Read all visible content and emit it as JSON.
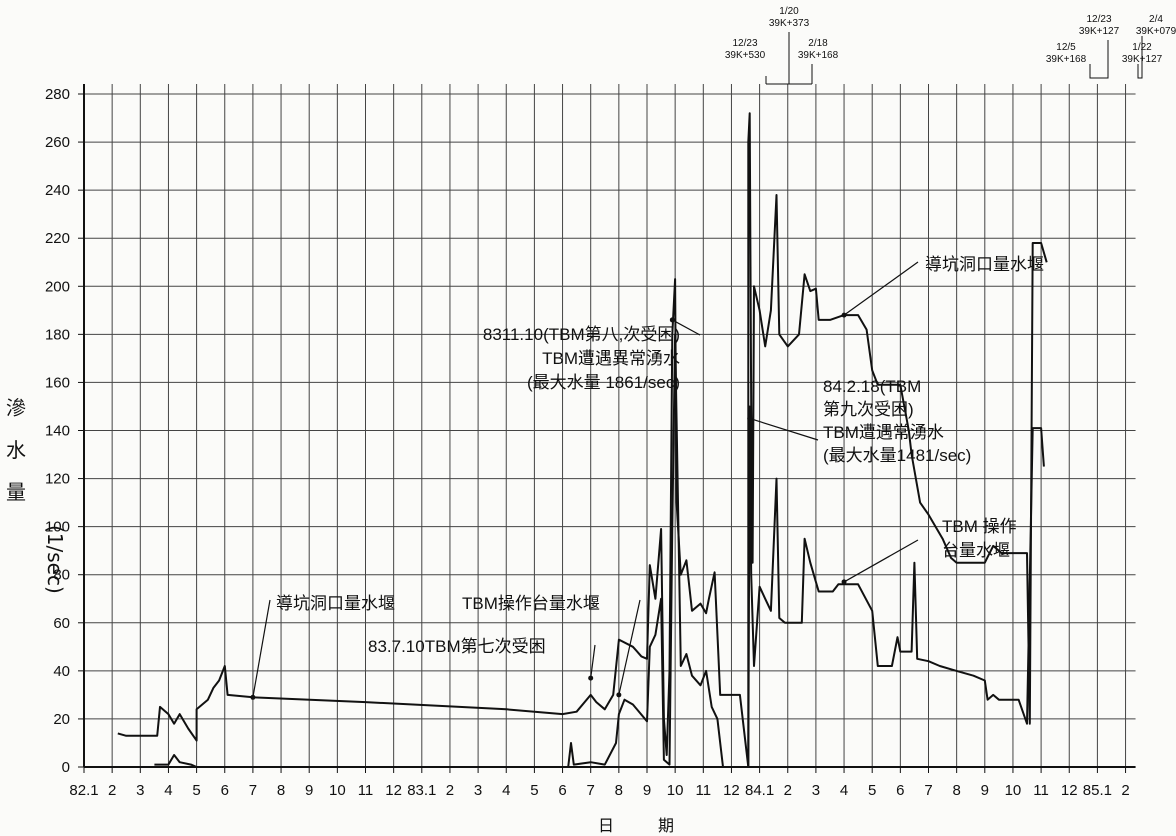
{
  "page": {
    "ylabel_chars": [
      "滲",
      "水",
      "量"
    ],
    "ylabel_unit": "(1/sec)",
    "xlabel_chars": [
      "日",
      "期"
    ]
  },
  "chart_data": {
    "type": "line",
    "title": "",
    "xlabel": "日 期",
    "ylabel": "滲水量 (1/sec)",
    "ylim": [
      0,
      280
    ],
    "yticks": [
      0,
      20,
      40,
      60,
      80,
      100,
      120,
      140,
      160,
      180,
      200,
      220,
      240,
      260,
      280
    ],
    "xticks": [
      "82.1",
      "2",
      "3",
      "4",
      "5",
      "6",
      "7",
      "8",
      "9",
      "10",
      "11",
      "12",
      "83.1",
      "2",
      "3",
      "4",
      "5",
      "6",
      "7",
      "8",
      "9",
      "10",
      "11",
      "12",
      "84.1",
      "2",
      "3",
      "4",
      "5",
      "6",
      "7",
      "8",
      "9",
      "10",
      "11",
      "12",
      "85.1",
      "2"
    ],
    "grid": true,
    "series": [
      {
        "name": "導坑洞口量水堰",
        "points": [
          [
            1.2,
            14
          ],
          [
            1.5,
            13
          ],
          [
            2.0,
            13
          ],
          [
            2.6,
            13
          ],
          [
            2.7,
            25
          ],
          [
            3.0,
            22
          ],
          [
            3.2,
            18
          ],
          [
            3.4,
            22
          ],
          [
            3.7,
            16
          ],
          [
            4.0,
            11
          ],
          [
            4.0,
            24
          ],
          [
            4.4,
            28
          ],
          [
            4.6,
            33
          ],
          [
            4.8,
            36
          ],
          [
            5.0,
            42
          ],
          [
            5.1,
            30
          ],
          [
            6.0,
            29
          ],
          [
            10.0,
            27
          ],
          [
            15.0,
            24
          ],
          [
            17.0,
            22
          ],
          [
            17.5,
            23
          ],
          [
            18.0,
            30
          ],
          [
            18.2,
            27
          ],
          [
            18.5,
            24
          ],
          [
            18.8,
            30
          ],
          [
            19.0,
            53
          ],
          [
            19.5,
            50
          ],
          [
            19.8,
            46
          ],
          [
            20.0,
            45
          ],
          [
            20.1,
            84
          ],
          [
            20.3,
            70
          ],
          [
            20.5,
            99
          ],
          [
            20.6,
            20
          ],
          [
            20.7,
            5
          ],
          [
            20.8,
            40
          ],
          [
            20.9,
            180
          ],
          [
            21.0,
            203
          ],
          [
            21.05,
            110
          ],
          [
            21.2,
            80
          ],
          [
            21.4,
            86
          ],
          [
            21.6,
            65
          ],
          [
            21.9,
            68
          ],
          [
            22.1,
            64
          ],
          [
            22.2,
            70
          ],
          [
            22.4,
            81
          ],
          [
            22.6,
            30
          ],
          [
            23.3,
            30
          ],
          [
            23.6,
            0
          ],
          [
            23.6,
            260
          ],
          [
            23.65,
            272
          ],
          [
            23.7,
            150
          ],
          [
            23.75,
            85
          ],
          [
            23.8,
            200
          ],
          [
            24.0,
            190
          ],
          [
            24.2,
            175
          ],
          [
            24.4,
            190
          ],
          [
            24.6,
            238
          ],
          [
            24.7,
            180
          ],
          [
            25.0,
            175
          ],
          [
            25.4,
            180
          ],
          [
            25.6,
            205
          ],
          [
            25.8,
            198
          ],
          [
            26.0,
            199
          ],
          [
            26.1,
            186
          ],
          [
            26.5,
            186
          ],
          [
            27.0,
            188
          ],
          [
            27.5,
            188
          ],
          [
            27.8,
            182
          ],
          [
            28.0,
            165
          ],
          [
            28.2,
            159
          ],
          [
            29.0,
            159
          ],
          [
            29.3,
            140
          ],
          [
            29.4,
            130
          ],
          [
            29.7,
            110
          ],
          [
            30.0,
            105
          ],
          [
            30.5,
            95
          ],
          [
            30.8,
            87
          ],
          [
            31.0,
            85
          ],
          [
            32.0,
            85
          ],
          [
            32.3,
            92
          ],
          [
            32.6,
            89
          ],
          [
            33.5,
            89
          ],
          [
            33.6,
            18
          ],
          [
            33.7,
            218
          ],
          [
            34.0,
            218
          ],
          [
            34.2,
            210
          ]
        ]
      },
      {
        "name": "TBM操作台量水堰",
        "points": [
          [
            2.5,
            1
          ],
          [
            3.0,
            1
          ],
          [
            3.2,
            5
          ],
          [
            3.4,
            2
          ],
          [
            3.8,
            1
          ],
          [
            4.0,
            0
          ],
          [
            17.2,
            0
          ],
          [
            17.3,
            10
          ],
          [
            17.4,
            1
          ],
          [
            18.0,
            2
          ],
          [
            18.5,
            1
          ],
          [
            18.9,
            10
          ],
          [
            19.0,
            22
          ],
          [
            19.2,
            28
          ],
          [
            19.5,
            26
          ],
          [
            20.0,
            19
          ],
          [
            20.1,
            50
          ],
          [
            20.3,
            55
          ],
          [
            20.5,
            70
          ],
          [
            20.6,
            3
          ],
          [
            20.8,
            1
          ],
          [
            20.9,
            100
          ],
          [
            21.0,
            180
          ],
          [
            21.1,
            110
          ],
          [
            21.2,
            42
          ],
          [
            21.4,
            47
          ],
          [
            21.6,
            38
          ],
          [
            21.9,
            34
          ],
          [
            22.1,
            40
          ],
          [
            22.3,
            25
          ],
          [
            22.5,
            20
          ],
          [
            22.7,
            0
          ],
          [
            23.6,
            0
          ],
          [
            23.65,
            150
          ],
          [
            23.7,
            80
          ],
          [
            23.8,
            42
          ],
          [
            24.0,
            75
          ],
          [
            24.2,
            70
          ],
          [
            24.4,
            65
          ],
          [
            24.6,
            120
          ],
          [
            24.7,
            62
          ],
          [
            24.9,
            60
          ],
          [
            25.2,
            60
          ],
          [
            25.5,
            60
          ],
          [
            25.6,
            95
          ],
          [
            25.8,
            85
          ],
          [
            26.1,
            73
          ],
          [
            26.6,
            73
          ],
          [
            26.8,
            76
          ],
          [
            27.5,
            76
          ],
          [
            28.0,
            65
          ],
          [
            28.2,
            42
          ],
          [
            28.7,
            42
          ],
          [
            28.9,
            54
          ],
          [
            29.0,
            48
          ],
          [
            29.4,
            48
          ],
          [
            29.5,
            85
          ],
          [
            29.6,
            45
          ],
          [
            30.0,
            44
          ],
          [
            30.4,
            42
          ],
          [
            31.0,
            40
          ],
          [
            31.6,
            38
          ],
          [
            32.0,
            36
          ],
          [
            32.1,
            28
          ],
          [
            32.3,
            30
          ],
          [
            32.5,
            28
          ],
          [
            33.2,
            28
          ],
          [
            33.5,
            18
          ],
          [
            33.7,
            141
          ],
          [
            34.0,
            141
          ],
          [
            34.1,
            125
          ]
        ]
      }
    ],
    "annotations": [
      {
        "id": "a1",
        "text": "導坑洞口量水堰",
        "x": 6.0,
        "y": 29
      },
      {
        "id": "a2",
        "text": "TBM操作台量水堰",
        "x": 19.0,
        "y": 30
      },
      {
        "id": "a3",
        "text": "83.7.10TBM第七次受困",
        "x": 18.0,
        "y": 37
      },
      {
        "id": "a4",
        "lines": [
          "8311.10(TBM第八,次受困)",
          "TBM遭遇異常湧水",
          "(最大水量 1861/sec)"
        ],
        "x": 20.9,
        "y": 186
      },
      {
        "id": "a5",
        "lines": [
          "84.2.18(TBM",
          "第九次受困)",
          "TBM遭遇常湧水",
          "(最大水量1481/sec)"
        ],
        "x": 23.65,
        "y": 145
      },
      {
        "id": "a6",
        "text": "導坑洞口量水堰",
        "x": 27.0,
        "y": 188
      },
      {
        "id": "a7",
        "lines": [
          "TBM 操作",
          "台量水堰"
        ],
        "x": 27.0,
        "y": 77
      }
    ],
    "stations": [
      {
        "date": "1/20",
        "chainage": "39K+373"
      },
      {
        "date": "12/23",
        "chainage": "39K+530"
      },
      {
        "date": "2/18",
        "chainage": "39K+168"
      },
      {
        "date": "12/23",
        "chainage": "39K+127"
      },
      {
        "date": "2/4",
        "chainage": "39K+079"
      },
      {
        "date": "12/5",
        "chainage": "39K+168"
      },
      {
        "date": "1/22",
        "chainage": "39K+127"
      }
    ]
  }
}
